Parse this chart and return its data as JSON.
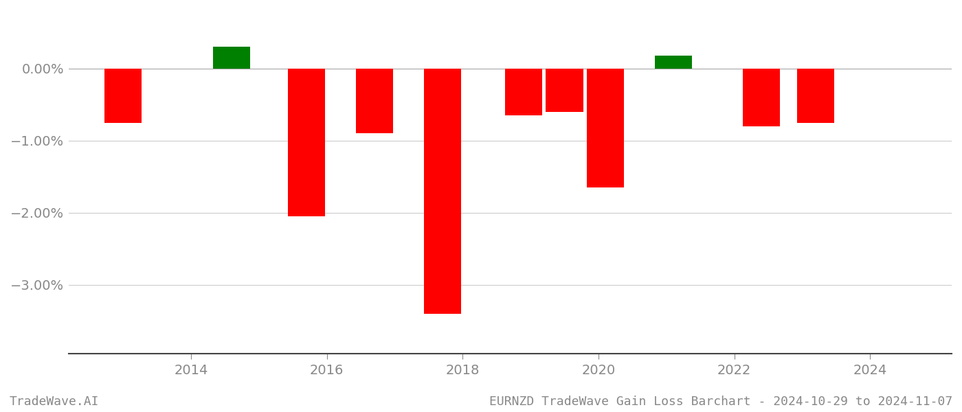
{
  "years": [
    2013.0,
    2014.6,
    2015.7,
    2016.7,
    2017.7,
    2018.9,
    2019.5,
    2020.1,
    2021.1,
    2022.4,
    2023.2
  ],
  "values": [
    -0.0075,
    0.003,
    -0.0205,
    -0.009,
    -0.034,
    -0.0065,
    -0.006,
    -0.0165,
    0.0018,
    -0.008,
    -0.0075
  ],
  "colors": [
    "#ff0000",
    "#008000",
    "#ff0000",
    "#ff0000",
    "#ff0000",
    "#ff0000",
    "#ff0000",
    "#ff0000",
    "#008000",
    "#ff0000",
    "#ff0000"
  ],
  "title": "EURNZD TradeWave Gain Loss Barchart - 2024-10-29 to 2024-11-07",
  "watermark": "TradeWave.AI",
  "ylim_min": -0.0395,
  "ylim_max": 0.0075,
  "yticks": [
    0.0,
    -0.01,
    -0.02,
    -0.03
  ],
  "ytick_labels": [
    "−0.00%",
    "−1.00%",
    "−2.00%",
    "−3.00%"
  ],
  "background_color": "#ffffff",
  "bar_edge_color": "none",
  "grid_color": "#cccccc",
  "axis_color": "#888888",
  "text_color": "#888888",
  "bar_width": 0.55
}
